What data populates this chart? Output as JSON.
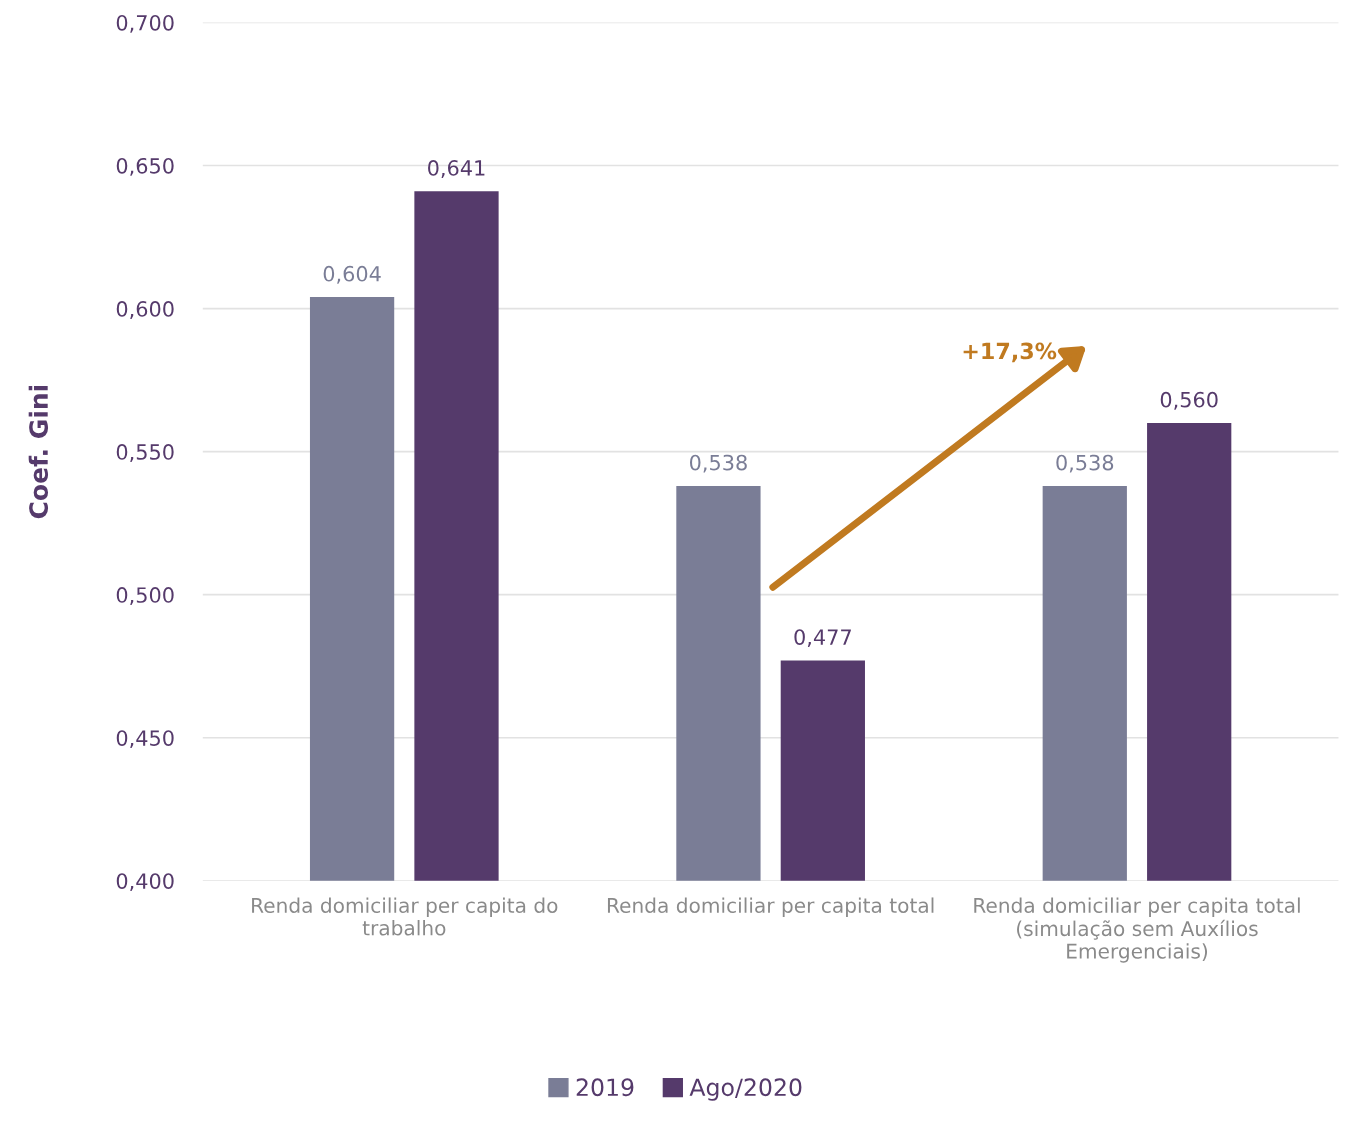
{
  "chart_data": {
    "type": "bar",
    "ylabel": "Coef. Gini",
    "categories": [
      "Renda domiciliar per capita do\ntrabalho",
      "Renda domiciliar per capita total",
      "Renda domiciliar per capita total\n(simulação sem Auxílios\nEmergenciais)"
    ],
    "series": [
      {
        "name": "2019",
        "color": "#7a7d96",
        "values": [
          0.604,
          0.538,
          0.538
        ],
        "value_labels": [
          "0,604",
          "0,538",
          "0,538"
        ]
      },
      {
        "name": "Ago/2020",
        "color": "#553a6b",
        "values": [
          0.641,
          0.477,
          0.56
        ],
        "value_labels": [
          "0,641",
          "0,477",
          "0,560"
        ]
      }
    ],
    "ylim": [
      0.4,
      0.7
    ],
    "yticks": [
      {
        "value": 0.4,
        "label": "0,400"
      },
      {
        "value": 0.45,
        "label": "0,450"
      },
      {
        "value": 0.5,
        "label": "0,500"
      },
      {
        "value": 0.55,
        "label": "0,550"
      },
      {
        "value": 0.6,
        "label": "0,600"
      },
      {
        "value": 0.65,
        "label": "0,650"
      },
      {
        "value": 0.7,
        "label": "0,700"
      }
    ],
    "grid": "y",
    "legend": "bottom",
    "annotations": [
      "+17,3%"
    ]
  }
}
